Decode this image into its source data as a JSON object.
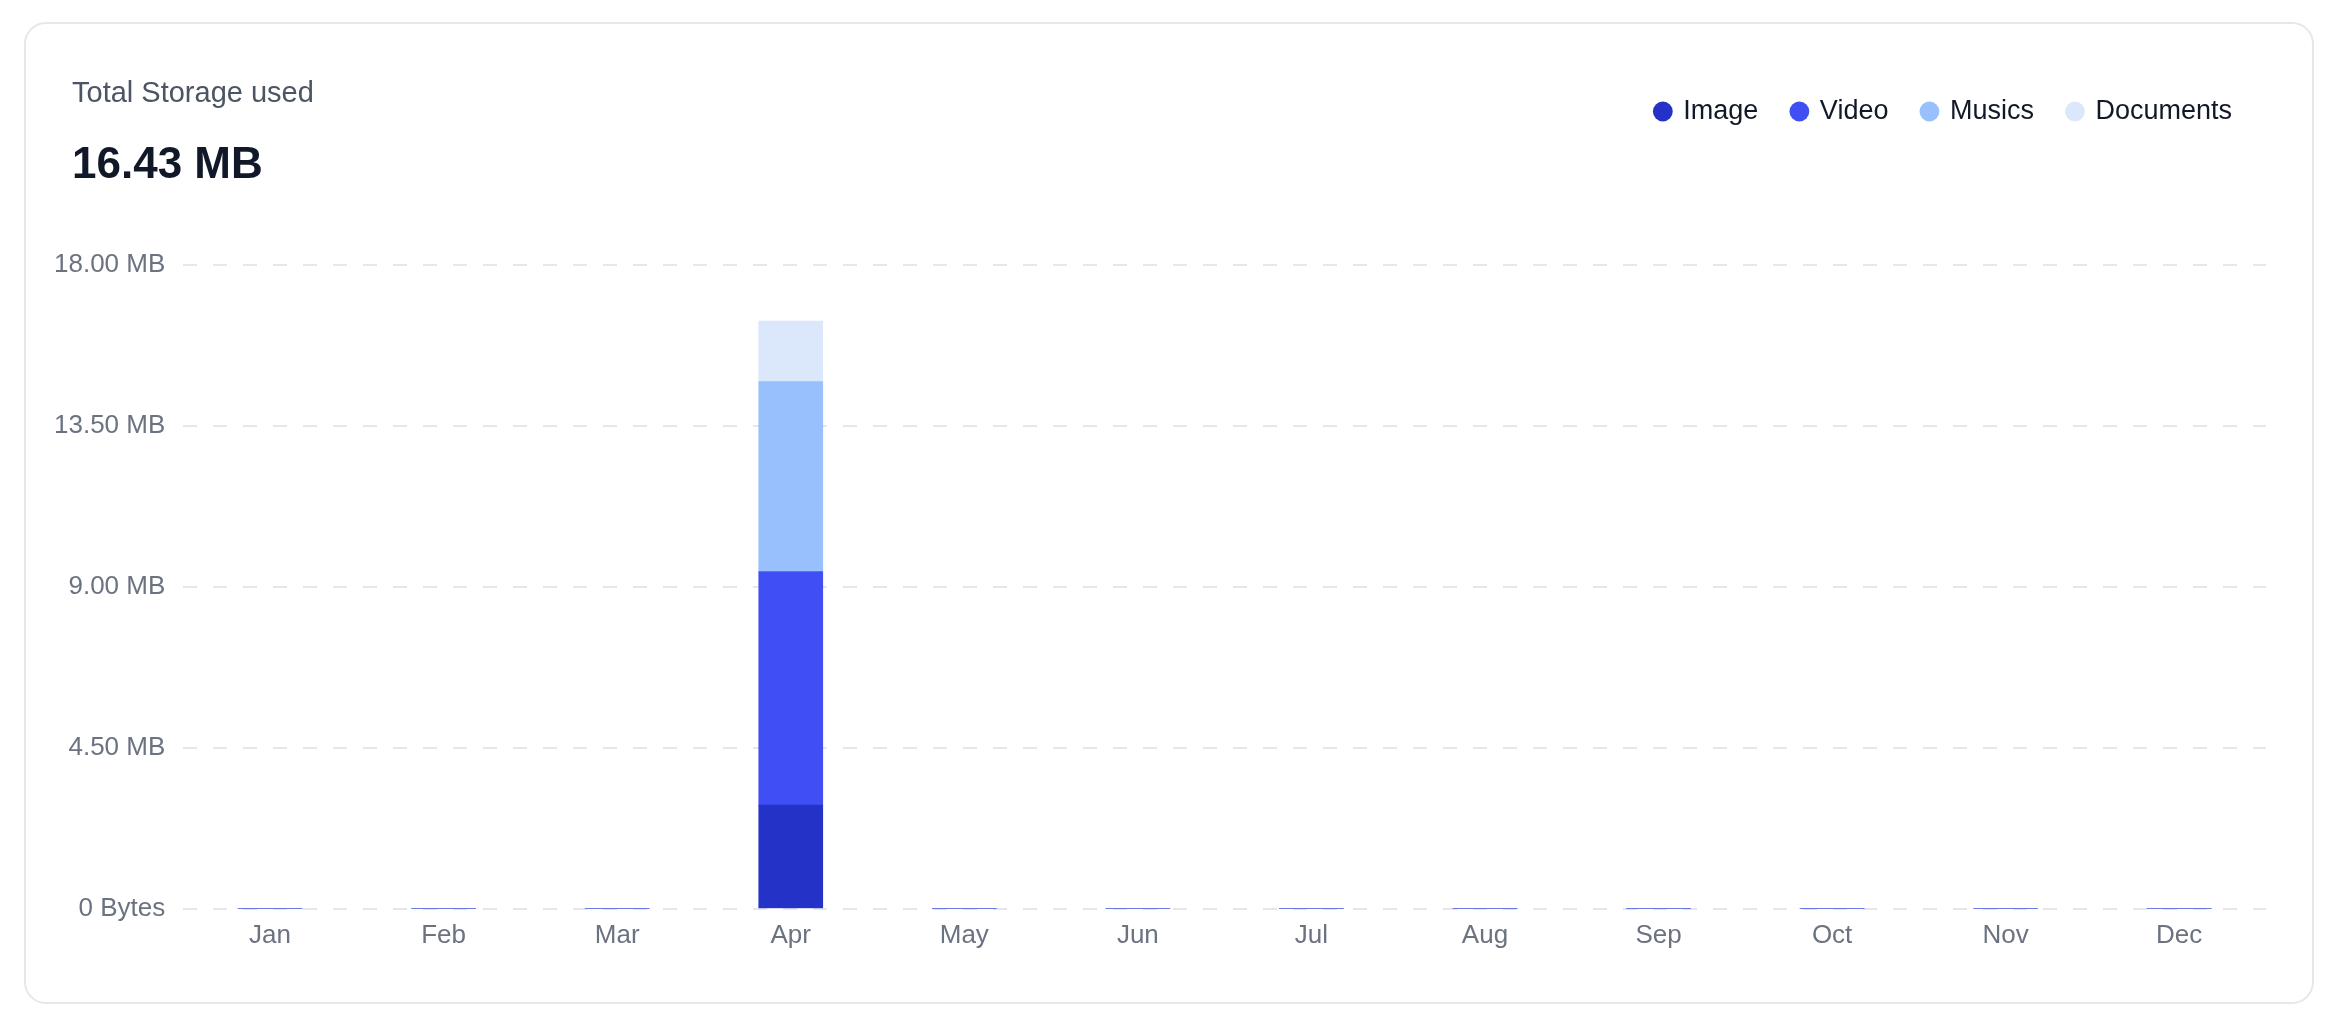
{
  "chart_data": {
    "type": "bar",
    "title": "Total Storage used",
    "subtitle": "16.43 MB",
    "categories": [
      "Jan",
      "Feb",
      "Mar",
      "Apr",
      "May",
      "Jun",
      "Jul",
      "Aug",
      "Sep",
      "Oct",
      "Nov",
      "Dec"
    ],
    "stacked": true,
    "series": [
      {
        "name": "Image",
        "color": "#2532c8",
        "values": [
          0,
          0,
          0,
          2.9,
          0,
          0,
          0,
          0,
          0,
          0,
          0,
          0
        ]
      },
      {
        "name": "Video",
        "color": "#3f4ff3",
        "values": [
          0,
          0,
          0,
          6.53,
          0,
          0,
          0,
          0,
          0,
          0,
          0,
          0
        ]
      },
      {
        "name": "Musics",
        "color": "#98c0fd",
        "values": [
          0,
          0,
          0,
          5.31,
          0,
          0,
          0,
          0,
          0,
          0,
          0,
          0
        ]
      },
      {
        "name": "Documents",
        "color": "#dbe7fb",
        "values": [
          0,
          0,
          0,
          1.69,
          0,
          0,
          0,
          0,
          0,
          0,
          0,
          0
        ]
      }
    ],
    "ylim": [
      0,
      18
    ],
    "yticks": [
      {
        "value": 0,
        "label": "0 Bytes"
      },
      {
        "value": 4.5,
        "label": "4.50 MB"
      },
      {
        "value": 9,
        "label": "9.00 MB"
      },
      {
        "value": 13.5,
        "label": "13.50 MB"
      },
      {
        "value": 18,
        "label": "18.00 MB"
      }
    ],
    "grid": "y",
    "legend": "top right"
  }
}
